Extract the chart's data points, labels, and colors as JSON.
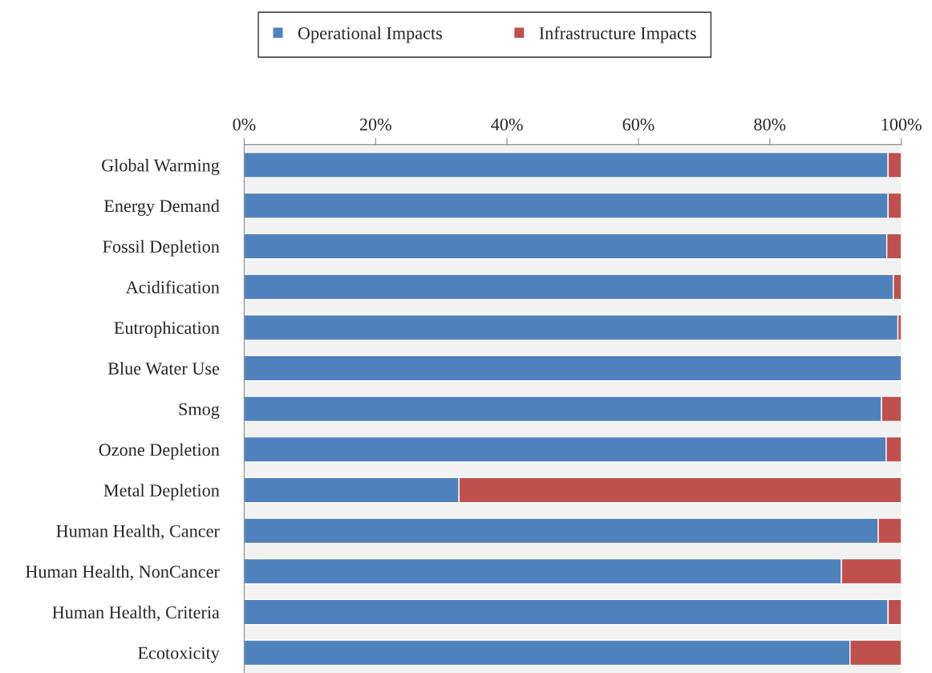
{
  "chart_data": {
    "type": "bar",
    "orientation": "horizontal",
    "stacked": true,
    "categories": [
      "Global Warming",
      "Energy Demand",
      "Fossil Depletion",
      "Acidification",
      "Eutrophication",
      "Blue Water Use",
      "Smog",
      "Ozone Depletion",
      "Metal Depletion",
      "Human Health, Cancer",
      "Human Health, NonCancer",
      "Human Health, Criteria",
      "Ecotoxicity"
    ],
    "series": [
      {
        "name": "Operational Impacts",
        "color": "#4f81bd",
        "values": [
          98.0,
          98.0,
          97.8,
          98.8,
          99.5,
          100,
          97.0,
          97.7,
          32.7,
          96.5,
          90.9,
          98.0,
          92.2
        ]
      },
      {
        "name": "Infrastructure Impacts",
        "color": "#c0504d",
        "values": [
          2.0,
          2.0,
          2.2,
          1.2,
          0.5,
          null,
          3.0,
          2.3,
          67.3,
          3.5,
          9.1,
          2.0,
          7.8
        ]
      }
    ],
    "xlim": [
      0,
      100
    ],
    "xticks": [
      {
        "value": 0,
        "label": "0%"
      },
      {
        "value": 20,
        "label": "20%"
      },
      {
        "value": 40,
        "label": "40%"
      },
      {
        "value": 60,
        "label": "60%"
      },
      {
        "value": 80,
        "label": "80%"
      },
      {
        "value": 100,
        "label": "100%"
      }
    ],
    "legend": "top",
    "grid": false
  }
}
